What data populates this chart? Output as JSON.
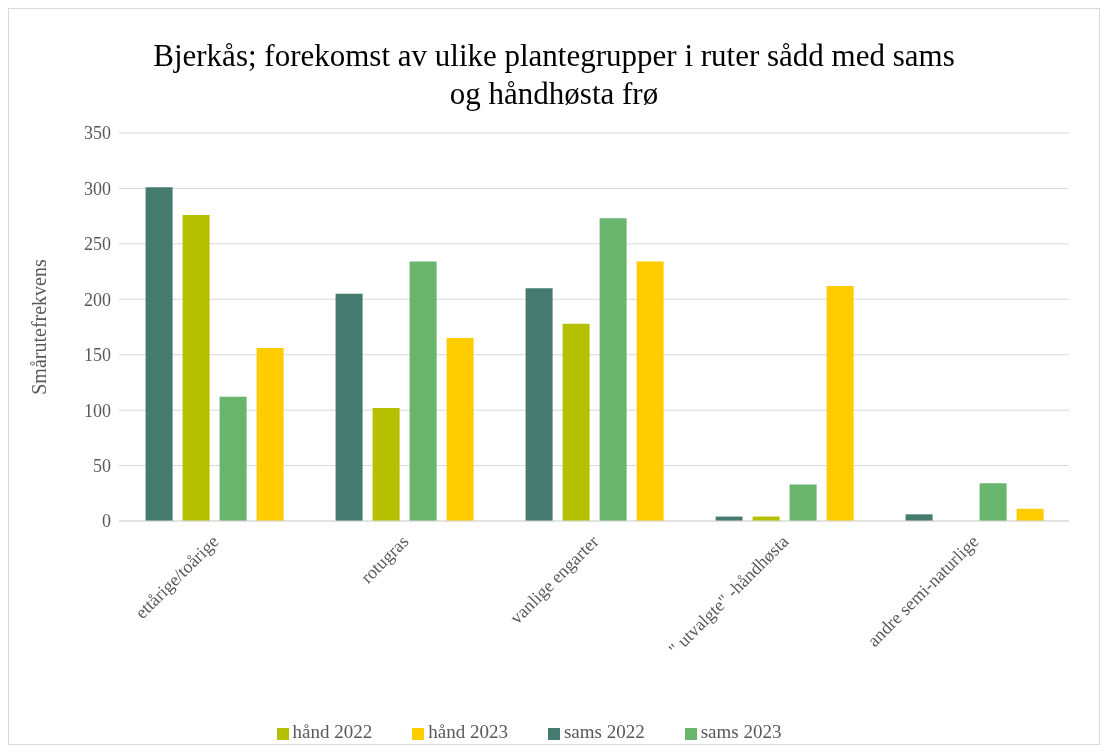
{
  "chart_data": {
    "type": "bar",
    "title": "Bjerkås; forekomst av ulike plantegrupper i ruter sådd med sams og håndhøsta frø",
    "ylabel": "Smårutefrekvens",
    "categories": [
      "ettårige/toårige",
      "rotugras",
      "vanlige engarter",
      "\" utvalgte\" -håndhøsta",
      "andre semi-naturlige"
    ],
    "series": [
      {
        "name": "sams 2022",
        "color": "#457b6e",
        "values": [
          301,
          205,
          210,
          4,
          6
        ]
      },
      {
        "name": "hånd 2022",
        "color": "#b5c000",
        "values": [
          276,
          102,
          178,
          4,
          0
        ]
      },
      {
        "name": "sams 2023",
        "color": "#69b56e",
        "values": [
          112,
          234,
          273,
          33,
          34
        ]
      },
      {
        "name": "hånd 2023",
        "color": "#ffcc00",
        "values": [
          156,
          165,
          234,
          212,
          11
        ]
      }
    ],
    "ylim": [
      0,
      350
    ],
    "yticks": [
      0,
      50,
      100,
      150,
      200,
      250,
      300,
      350
    ],
    "grid": "y",
    "legend": "bottom"
  }
}
